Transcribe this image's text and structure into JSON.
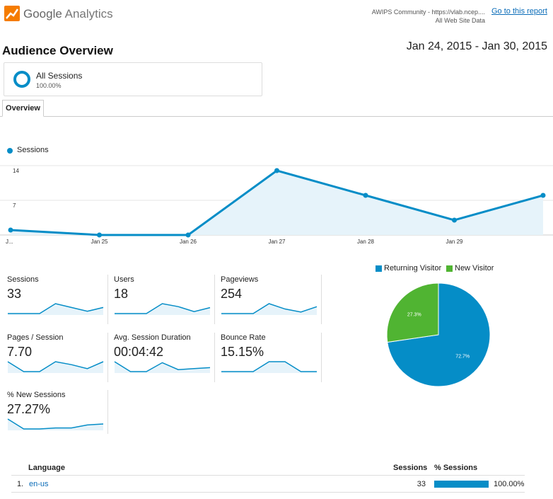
{
  "header": {
    "logo_word": "Google",
    "logo_product": "Analytics",
    "account_line": "AWIPS Community - https://vlab.ncep....",
    "view_line": "All Web Site Data",
    "report_link": "Go to this report"
  },
  "page": {
    "title": "Audience Overview",
    "date_start": "Jan 24, 2015",
    "date_sep": " - ",
    "date_end": "Jan 30, 2015"
  },
  "segment": {
    "name": "All Sessions",
    "pct": "100.00%"
  },
  "tabs": {
    "overview": "Overview"
  },
  "colors": {
    "accent": "#058dc7",
    "new_visitor": "#50b432",
    "link": "#0a6cb8",
    "fill": "#e6f3fa"
  },
  "chart_data": [
    {
      "type": "line",
      "series": [
        {
          "name": "Sessions",
          "values": [
            1,
            0,
            0,
            13,
            8,
            3,
            8
          ]
        }
      ],
      "x": [
        "J...",
        "Jan 25",
        "Jan 26",
        "Jan 27",
        "Jan 28",
        "Jan 29",
        ""
      ],
      "yticks": [
        "14",
        "7"
      ],
      "ylim": [
        0,
        14
      ],
      "grid": true
    },
    {
      "type": "pie",
      "categories": [
        "Returning Visitor",
        "New Visitor"
      ],
      "values": [
        72.7,
        27.3
      ],
      "labels": [
        "72.7%",
        "27.3%"
      ],
      "colors": [
        "#058dc7",
        "#50b432"
      ]
    }
  ],
  "metrics": [
    {
      "label": "Sessions",
      "value": "33",
      "spark": [
        0,
        0,
        0,
        13,
        8,
        3,
        8
      ]
    },
    {
      "label": "Users",
      "value": "18",
      "spark": [
        0,
        0,
        0,
        10,
        7,
        2,
        6
      ]
    },
    {
      "label": "Pageviews",
      "value": "254",
      "spark": [
        0,
        0,
        0,
        13,
        6,
        2,
        9
      ]
    },
    {
      "label": "Pages / Session",
      "value": "7.70",
      "spark": [
        10,
        0,
        0,
        10,
        7,
        3,
        10
      ]
    },
    {
      "label": "Avg. Session Duration",
      "value": "00:04:42",
      "spark": [
        10,
        0,
        0,
        9,
        2,
        3,
        4
      ]
    },
    {
      "label": "Bounce Rate",
      "value": "15.15%",
      "spark": [
        0,
        0,
        0,
        10,
        10,
        0,
        0
      ]
    },
    {
      "label": "% New Sessions",
      "value": "27.27%",
      "spark": [
        10,
        0,
        0,
        1,
        1,
        4,
        5
      ]
    }
  ],
  "table": {
    "headers": {
      "language": "Language",
      "sessions": "Sessions",
      "pct_sessions": "% Sessions"
    },
    "rows": [
      {
        "rank": "1.",
        "language": "en-us",
        "sessions": "33",
        "pct": "100.00%",
        "bar_fraction": 1.0
      }
    ]
  }
}
